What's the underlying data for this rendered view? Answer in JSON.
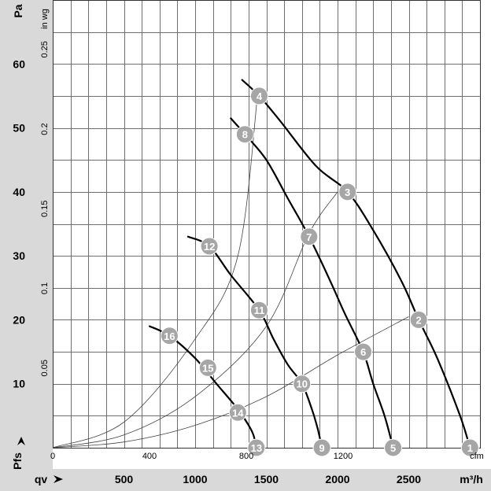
{
  "chart_data": {
    "type": "line",
    "axes": {
      "left": {
        "unit": "Pa",
        "label": "Pfs",
        "range": [
          0,
          70
        ],
        "ticks": [
          10,
          20,
          30,
          40,
          50,
          60
        ]
      },
      "right_inner": {
        "unit": "in wg",
        "range": [
          0,
          0.28
        ],
        "ticks": [
          0.05,
          0.1,
          0.15,
          0.2,
          0.25
        ]
      },
      "bottom": {
        "unit": "m³/h",
        "label": "qv",
        "range": [
          0,
          3000
        ],
        "ticks": [
          500,
          1000,
          1500,
          2000,
          2500
        ]
      },
      "bottom_inner": {
        "unit": "cfm",
        "range": [
          0,
          1770
        ],
        "ticks": [
          0,
          400,
          800,
          1200
        ]
      }
    },
    "grid": true,
    "fan_curves": [
      {
        "points": [
          [
            1330,
            57.5
          ],
          [
            1450,
            55
          ],
          [
            1600,
            51
          ],
          [
            1850,
            44
          ],
          [
            2070,
            40
          ],
          [
            2250,
            34
          ],
          [
            2450,
            26
          ],
          [
            2570,
            20
          ],
          [
            2700,
            14
          ],
          [
            2860,
            5
          ],
          [
            2930,
            0
          ]
        ]
      },
      {
        "points": [
          [
            1250,
            51.5
          ],
          [
            1350,
            49
          ],
          [
            1500,
            45
          ],
          [
            1650,
            39
          ],
          [
            1800,
            33
          ],
          [
            1950,
            26
          ],
          [
            2050,
            21
          ],
          [
            2180,
            15
          ],
          [
            2250,
            10
          ],
          [
            2330,
            5
          ],
          [
            2390,
            0
          ]
        ]
      },
      {
        "points": [
          [
            950,
            33
          ],
          [
            1100,
            31.5
          ],
          [
            1250,
            27
          ],
          [
            1450,
            21.5
          ],
          [
            1550,
            17
          ],
          [
            1650,
            13
          ],
          [
            1750,
            10
          ],
          [
            1820,
            6
          ],
          [
            1860,
            3
          ],
          [
            1890,
            0
          ]
        ]
      },
      {
        "points": [
          [
            680,
            19
          ],
          [
            820,
            17.5
          ],
          [
            1000,
            14
          ],
          [
            1150,
            10
          ],
          [
            1300,
            6
          ],
          [
            1400,
            2.5
          ],
          [
            1430,
            0
          ]
        ]
      }
    ],
    "system_curves": [
      {
        "points": [
          [
            0,
            0
          ],
          [
            500,
            4
          ],
          [
            1000,
            17
          ],
          [
            1300,
            30
          ],
          [
            1440,
            55.5
          ]
        ]
      },
      {
        "points": [
          [
            0,
            0
          ],
          [
            500,
            2
          ],
          [
            1000,
            8
          ],
          [
            1500,
            19
          ],
          [
            1800,
            33.5
          ],
          [
            2000,
            40
          ]
        ]
      },
      {
        "points": [
          [
            0,
            0
          ],
          [
            500,
            0.9
          ],
          [
            1000,
            3.5
          ],
          [
            1500,
            8
          ],
          [
            2000,
            14.5
          ],
          [
            2500,
            20.5
          ]
        ]
      }
    ],
    "markers": [
      {
        "label": "1",
        "x": 2930,
        "y": 0
      },
      {
        "label": "2",
        "x": 2570,
        "y": 20
      },
      {
        "label": "3",
        "x": 2070,
        "y": 40
      },
      {
        "label": "4",
        "x": 1450,
        "y": 55
      },
      {
        "label": "5",
        "x": 2390,
        "y": 0
      },
      {
        "label": "6",
        "x": 2180,
        "y": 15
      },
      {
        "label": "7",
        "x": 1800,
        "y": 33
      },
      {
        "label": "8",
        "x": 1350,
        "y": 49
      },
      {
        "label": "9",
        "x": 1890,
        "y": 0
      },
      {
        "label": "10",
        "x": 1750,
        "y": 10
      },
      {
        "label": "11",
        "x": 1450,
        "y": 21.5
      },
      {
        "label": "12",
        "x": 1100,
        "y": 31.5
      },
      {
        "label": "13",
        "x": 1430,
        "y": 0
      },
      {
        "label": "14",
        "x": 1300,
        "y": 5.5
      },
      {
        "label": "15",
        "x": 1090,
        "y": 12.5
      },
      {
        "label": "16",
        "x": 820,
        "y": 17.5
      }
    ]
  }
}
